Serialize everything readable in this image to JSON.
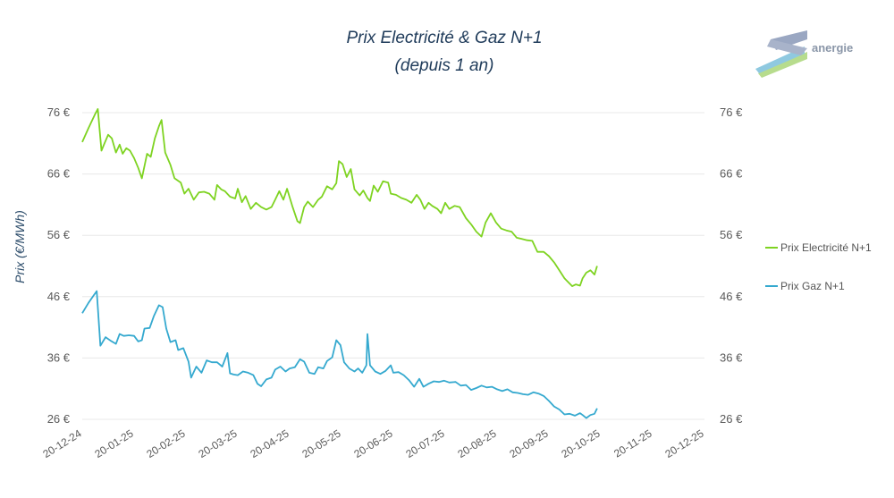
{
  "brand": {
    "name": "anergie"
  },
  "colors": {
    "electricity": "#7ed321",
    "gas": "#35a9cf",
    "grid": "#e8e8e8",
    "title": "#1f3b5a"
  },
  "chart_data": {
    "type": "line",
    "title": "Prix Electricité & Gaz N+1",
    "subtitle": "(depuis 1 an)",
    "xlabel": "",
    "ylabel": "Prix (€/MWh)",
    "ylim": [
      26,
      76
    ],
    "yticks": [
      76,
      66,
      56,
      46,
      36,
      26
    ],
    "ytick_labels": [
      "76 €",
      "66 €",
      "56 €",
      "46 €",
      "36 €",
      "26 €"
    ],
    "x_tick_labels": [
      "20-12-24",
      "20-01-25",
      "20-02-25",
      "20-03-25",
      "20-04-25",
      "20-05-25",
      "20-06-25",
      "20-07-25",
      "20-08-25",
      "20-09-25",
      "20-10-25",
      "20-11-25",
      "20-12-25"
    ],
    "grid": true,
    "legend_position": "right",
    "series": [
      {
        "name": "Prix Electricité N+1",
        "color": "#7ed321",
        "points": [
          [
            0,
            71.2
          ],
          [
            0.12,
            73.5
          ],
          [
            0.25,
            75.8
          ],
          [
            0.3,
            76.6
          ],
          [
            0.37,
            69.8
          ],
          [
            0.43,
            71
          ],
          [
            0.5,
            72.4
          ],
          [
            0.57,
            71.8
          ],
          [
            0.65,
            69.5
          ],
          [
            0.72,
            70.8
          ],
          [
            0.78,
            69.3
          ],
          [
            0.85,
            70.2
          ],
          [
            0.92,
            69.8
          ],
          [
            1,
            68.6
          ],
          [
            1.08,
            67
          ],
          [
            1.15,
            65.3
          ],
          [
            1.25,
            69.3
          ],
          [
            1.32,
            68.8
          ],
          [
            1.4,
            71.8
          ],
          [
            1.48,
            73.8
          ],
          [
            1.53,
            74.8
          ],
          [
            1.6,
            69.5
          ],
          [
            1.7,
            67.5
          ],
          [
            1.78,
            65.3
          ],
          [
            1.9,
            64.6
          ],
          [
            1.97,
            62.8
          ],
          [
            2.05,
            63.6
          ],
          [
            2.15,
            61.8
          ],
          [
            2.25,
            63
          ],
          [
            2.35,
            63.1
          ],
          [
            2.45,
            62.8
          ],
          [
            2.55,
            61.8
          ],
          [
            2.6,
            64.2
          ],
          [
            2.68,
            63.5
          ],
          [
            2.75,
            63.2
          ],
          [
            2.85,
            62.3
          ],
          [
            2.95,
            62
          ],
          [
            3.0,
            63.6
          ],
          [
            3.08,
            61.4
          ],
          [
            3.15,
            62.4
          ],
          [
            3.25,
            60.3
          ],
          [
            3.35,
            61.3
          ],
          [
            3.45,
            60.6
          ],
          [
            3.55,
            60.2
          ],
          [
            3.65,
            60.6
          ],
          [
            3.72,
            61.8
          ],
          [
            3.8,
            63.2
          ],
          [
            3.88,
            61.8
          ],
          [
            3.95,
            63.6
          ],
          [
            4.05,
            60.8
          ],
          [
            4.15,
            58.3
          ],
          [
            4.2,
            58
          ],
          [
            4.28,
            60.6
          ],
          [
            4.35,
            61.5
          ],
          [
            4.45,
            60.6
          ],
          [
            4.55,
            61.8
          ],
          [
            4.62,
            62.3
          ],
          [
            4.72,
            64
          ],
          [
            4.82,
            63.5
          ],
          [
            4.9,
            64.5
          ],
          [
            4.95,
            68.1
          ],
          [
            5.02,
            67.6
          ],
          [
            5.1,
            65.5
          ],
          [
            5.18,
            66.8
          ],
          [
            5.25,
            63.5
          ],
          [
            5.35,
            62.5
          ],
          [
            5.42,
            63.3
          ],
          [
            5.5,
            62.1
          ],
          [
            5.55,
            61.6
          ],
          [
            5.62,
            64.1
          ],
          [
            5.7,
            63.1
          ],
          [
            5.8,
            64.8
          ],
          [
            5.9,
            64.6
          ],
          [
            5.95,
            62.8
          ],
          [
            6.05,
            62.6
          ],
          [
            6.15,
            62.1
          ],
          [
            6.25,
            61.8
          ],
          [
            6.35,
            61.3
          ],
          [
            6.45,
            62.6
          ],
          [
            6.52,
            61.8
          ],
          [
            6.6,
            60.3
          ],
          [
            6.68,
            61.3
          ],
          [
            6.75,
            60.8
          ],
          [
            6.85,
            60.3
          ],
          [
            6.92,
            59.6
          ],
          [
            7.0,
            61.3
          ],
          [
            7.08,
            60.3
          ],
          [
            7.18,
            60.8
          ],
          [
            7.28,
            60.6
          ],
          [
            7.4,
            58.8
          ],
          [
            7.5,
            57.8
          ],
          [
            7.6,
            56.6
          ],
          [
            7.7,
            55.8
          ],
          [
            7.78,
            58.1
          ],
          [
            7.88,
            59.6
          ],
          [
            7.98,
            58.1
          ],
          [
            8.08,
            57.1
          ],
          [
            8.18,
            56.8
          ],
          [
            8.28,
            56.6
          ],
          [
            8.38,
            55.6
          ],
          [
            8.48,
            55.4
          ],
          [
            8.58,
            55.2
          ],
          [
            8.68,
            55.1
          ],
          [
            8.78,
            53.3
          ],
          [
            8.9,
            53.3
          ],
          [
            9.0,
            52.6
          ],
          [
            9.1,
            51.6
          ],
          [
            9.2,
            50.3
          ],
          [
            9.3,
            49
          ],
          [
            9.38,
            48.3
          ],
          [
            9.45,
            47.7
          ],
          [
            9.52,
            48
          ],
          [
            9.6,
            47.8
          ],
          [
            9.65,
            49
          ],
          [
            9.72,
            49.9
          ],
          [
            9.8,
            50.3
          ],
          [
            9.88,
            49.6
          ],
          [
            9.93,
            51
          ]
        ]
      },
      {
        "name": "Prix Gaz N+1",
        "color": "#35a9cf",
        "points": [
          [
            0,
            43.3
          ],
          [
            0.12,
            45
          ],
          [
            0.22,
            46.2
          ],
          [
            0.28,
            46.9
          ],
          [
            0.35,
            38
          ],
          [
            0.45,
            39.4
          ],
          [
            0.55,
            38.8
          ],
          [
            0.65,
            38.3
          ],
          [
            0.72,
            39.9
          ],
          [
            0.8,
            39.6
          ],
          [
            0.9,
            39.7
          ],
          [
            1.0,
            39.6
          ],
          [
            1.08,
            38.7
          ],
          [
            1.15,
            38.9
          ],
          [
            1.2,
            40.8
          ],
          [
            1.3,
            40.9
          ],
          [
            1.38,
            42.8
          ],
          [
            1.48,
            44.6
          ],
          [
            1.55,
            44.3
          ],
          [
            1.62,
            40.8
          ],
          [
            1.7,
            38.6
          ],
          [
            1.8,
            38.9
          ],
          [
            1.85,
            37.3
          ],
          [
            1.95,
            37.6
          ],
          [
            2.05,
            35.4
          ],
          [
            2.1,
            32.8
          ],
          [
            2.2,
            34.6
          ],
          [
            2.3,
            33.6
          ],
          [
            2.4,
            35.6
          ],
          [
            2.5,
            35.3
          ],
          [
            2.6,
            35.3
          ],
          [
            2.7,
            34.6
          ],
          [
            2.8,
            36.8
          ],
          [
            2.85,
            33.5
          ],
          [
            2.92,
            33.3
          ],
          [
            3.0,
            33.2
          ],
          [
            3.1,
            33.8
          ],
          [
            3.2,
            33.6
          ],
          [
            3.3,
            33.2
          ],
          [
            3.38,
            31.8
          ],
          [
            3.45,
            31.4
          ],
          [
            3.55,
            32.5
          ],
          [
            3.65,
            32.8
          ],
          [
            3.72,
            34.1
          ],
          [
            3.82,
            34.6
          ],
          [
            3.92,
            33.8
          ],
          [
            4.0,
            34.3
          ],
          [
            4.1,
            34.5
          ],
          [
            4.2,
            35.8
          ],
          [
            4.28,
            35.4
          ],
          [
            4.38,
            33.6
          ],
          [
            4.48,
            33.4
          ],
          [
            4.55,
            34.5
          ],
          [
            4.65,
            34.3
          ],
          [
            4.72,
            35.5
          ],
          [
            4.82,
            36.1
          ],
          [
            4.9,
            38.9
          ],
          [
            4.98,
            38.1
          ],
          [
            5.05,
            35.3
          ],
          [
            5.15,
            34.3
          ],
          [
            5.25,
            33.8
          ],
          [
            5.32,
            34.3
          ],
          [
            5.4,
            33.6
          ],
          [
            5.48,
            34.8
          ],
          [
            5.5,
            39.9
          ],
          [
            5.55,
            34.8
          ],
          [
            5.65,
            33.8
          ],
          [
            5.75,
            33.4
          ],
          [
            5.85,
            33.9
          ],
          [
            5.95,
            34.8
          ],
          [
            6.0,
            33.6
          ],
          [
            6.1,
            33.7
          ],
          [
            6.2,
            33.2
          ],
          [
            6.3,
            32.4
          ],
          [
            6.4,
            31.3
          ],
          [
            6.5,
            32.6
          ],
          [
            6.58,
            31.3
          ],
          [
            6.68,
            31.8
          ],
          [
            6.78,
            32.2
          ],
          [
            6.88,
            32.1
          ],
          [
            6.98,
            32.3
          ],
          [
            7.08,
            32
          ],
          [
            7.2,
            32.1
          ],
          [
            7.3,
            31.5
          ],
          [
            7.4,
            31.6
          ],
          [
            7.5,
            30.8
          ],
          [
            7.6,
            31.1
          ],
          [
            7.7,
            31.5
          ],
          [
            7.8,
            31.2
          ],
          [
            7.9,
            31.3
          ],
          [
            8.0,
            30.9
          ],
          [
            8.1,
            30.6
          ],
          [
            8.2,
            30.9
          ],
          [
            8.3,
            30.4
          ],
          [
            8.4,
            30.3
          ],
          [
            8.5,
            30.1
          ],
          [
            8.6,
            30
          ],
          [
            8.7,
            30.4
          ],
          [
            8.8,
            30.2
          ],
          [
            8.9,
            29.8
          ],
          [
            9.0,
            29
          ],
          [
            9.1,
            28.1
          ],
          [
            9.2,
            27.6
          ],
          [
            9.3,
            26.8
          ],
          [
            9.4,
            26.9
          ],
          [
            9.5,
            26.6
          ],
          [
            9.6,
            27
          ],
          [
            9.65,
            26.7
          ],
          [
            9.72,
            26.2
          ],
          [
            9.8,
            26.7
          ],
          [
            9.88,
            26.9
          ],
          [
            9.93,
            27.8
          ]
        ]
      }
    ]
  }
}
